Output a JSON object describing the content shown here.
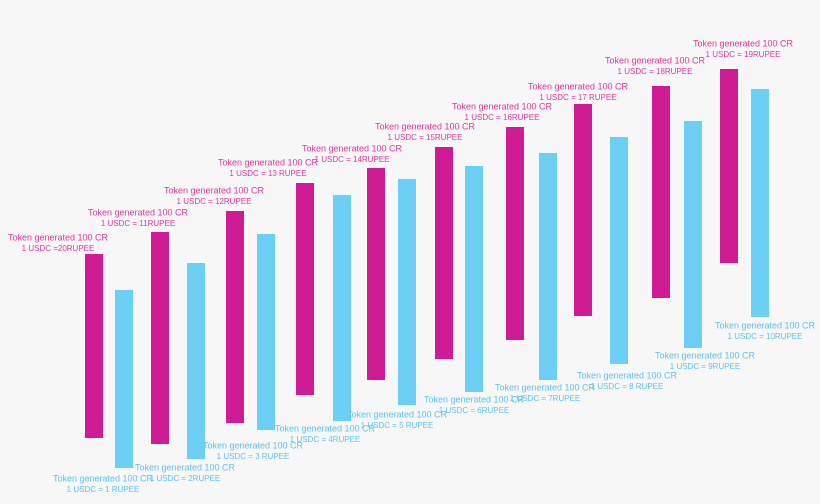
{
  "pink": [
    {
      "title": "Token generated 100 CR",
      "rate": "1 USDC =20RUPEE"
    },
    {
      "title": "Token generated 100 CR",
      "rate": "1 USDC = 11RUPEE"
    },
    {
      "title": "Token generated 100 CR",
      "rate": "1 USDC = 12RUPEE"
    },
    {
      "title": "Token generated 100 CR",
      "rate": "1 USDC = 13 RUPEE"
    },
    {
      "title": "Token generated 100 CR",
      "rate": "1 USDC = 14RUPEE"
    },
    {
      "title": "Token generated 100 CR",
      "rate": "1 USDC = 15RUPEE"
    },
    {
      "title": "Token generated 100 CR",
      "rate": "1 USDC = 16RUPEE"
    },
    {
      "title": "Token generated 100 CR",
      "rate": "1 USDC = 17 RUPEE"
    },
    {
      "title": "Token generated 100 CR",
      "rate": "1 USDC = 18RUPEE"
    },
    {
      "title": "Token generated 100 CR",
      "rate": "1 USDC = 19RUPEE"
    }
  ],
  "blue": [
    {
      "title": "Token generated 100 CR",
      "rate": "1 USDC = 1 RUPEE"
    },
    {
      "title": "Token generated 100 CR",
      "rate": "1 USDC = 2RUPEE"
    },
    {
      "title": "Token generated 100 CR",
      "rate": "1 USDC = 3 RUPEE"
    },
    {
      "title": "Token generated 100 CR",
      "rate": "1 USDC = 4RUPEE"
    },
    {
      "title": "Token generated 100 CR",
      "rate": "1 USDC = 5 RUPEE"
    },
    {
      "title": "Token generated 100 CR",
      "rate": "1 USDC = 6RUPEE"
    },
    {
      "title": "Token generated 100 CR",
      "rate": "1 USDC = 7RUPEE"
    },
    {
      "title": "Token generated 100 CR",
      "rate": "1 USDC = 8 RUPEE"
    },
    {
      "title": "Token generated 100 CR",
      "rate": "1 USDC = 9RUPEE"
    },
    {
      "title": "Token generated 100 CR",
      "rate": "1 USDC = 10RUPEE"
    }
  ]
}
